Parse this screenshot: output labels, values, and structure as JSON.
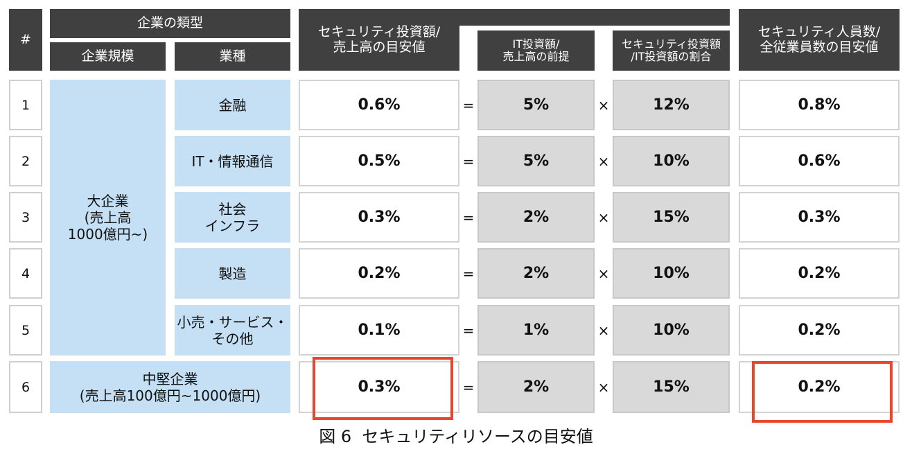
{
  "header": {
    "index": "#",
    "company_type": "企業の類型",
    "company_size": "企業規模",
    "industry": "業種",
    "sec_invest_ratio": [
      "セキュリティ投資額/",
      "売上高の目安値"
    ],
    "it_invest_ratio": [
      "IT投資額/",
      "売上高の前提"
    ],
    "sec_it_share": [
      "セキュリティ投資額",
      "/IT投資額の割合"
    ],
    "sec_staff_ratio": [
      "セキュリティ人員数/",
      "全従業員数の目安値"
    ]
  },
  "operators": {
    "equals": "=",
    "times": "×"
  },
  "groups": {
    "large": [
      "大企業",
      "(売上高",
      "1000億円~)"
    ],
    "mid": [
      "中堅企業",
      "(売上高100億円~1000億円)"
    ]
  },
  "rows": [
    {
      "index": "1",
      "industry": [
        "金融"
      ],
      "sec_invest": "0.6%",
      "it_invest": "5%",
      "share": "12%",
      "staff": "0.8%"
    },
    {
      "index": "2",
      "industry": [
        "IT・情報通信"
      ],
      "sec_invest": "0.5%",
      "it_invest": "5%",
      "share": "10%",
      "staff": "0.6%"
    },
    {
      "index": "3",
      "industry": [
        "社会",
        "インフラ"
      ],
      "sec_invest": "0.3%",
      "it_invest": "2%",
      "share": "15%",
      "staff": "0.3%"
    },
    {
      "index": "4",
      "industry": [
        "製造"
      ],
      "sec_invest": "0.2%",
      "it_invest": "2%",
      "share": "10%",
      "staff": "0.2%"
    },
    {
      "index": "5",
      "industry": [
        "小売・サービス・",
        "その他"
      ],
      "sec_invest": "0.1%",
      "it_invest": "1%",
      "share": "10%",
      "staff": "0.2%"
    },
    {
      "index": "6",
      "industry": [],
      "sec_invest": "0.3%",
      "it_invest": "2%",
      "share": "15%",
      "staff": "0.2%"
    }
  ],
  "highlights": {
    "color": "#e8472e",
    "cells": [
      "row6.sec_invest",
      "row6.staff"
    ]
  },
  "colors": {
    "header_bg": "#404040",
    "blue_cell": "#c5e0f4",
    "gray_cell": "#d9d9d9"
  },
  "caption": "図 6  セキュリティリソースの目安値"
}
